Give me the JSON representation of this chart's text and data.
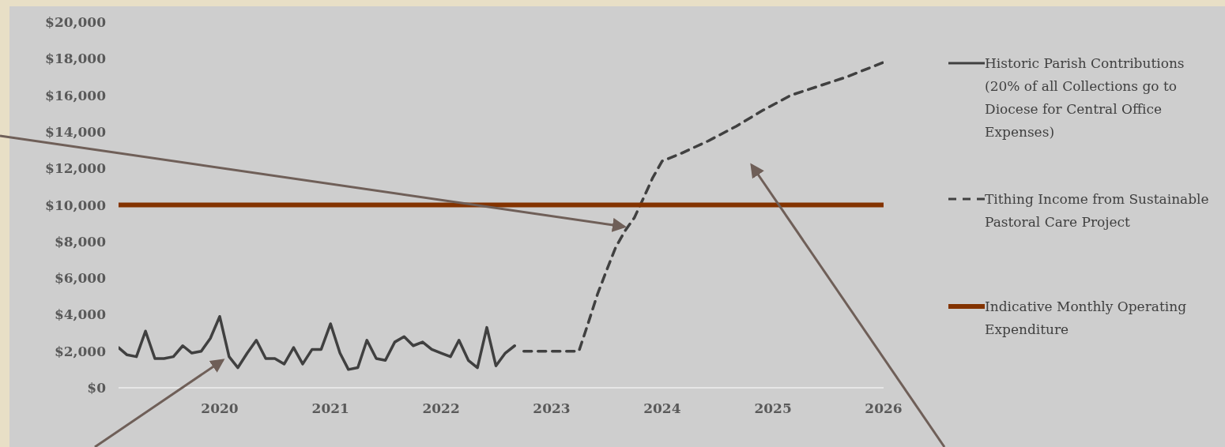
{
  "chart_data": {
    "type": "line",
    "xlim": [
      "2019-02",
      "2026-01"
    ],
    "xticks": [
      "2020",
      "2021",
      "2022",
      "2023",
      "2024",
      "2025",
      "2026"
    ],
    "ylim": [
      0,
      20000
    ],
    "yticks": [
      {
        "value": 0,
        "label": "$0"
      },
      {
        "value": 2000,
        "label": "$2,000"
      },
      {
        "value": 4000,
        "label": "$4,000"
      },
      {
        "value": 6000,
        "label": "$6,000"
      },
      {
        "value": 8000,
        "label": "$8,000"
      },
      {
        "value": 10000,
        "label": "$10,000"
      },
      {
        "value": 12000,
        "label": "$12,000"
      },
      {
        "value": 14000,
        "label": "$14,000"
      },
      {
        "value": 16000,
        "label": "$16,000"
      },
      {
        "value": 18000,
        "label": "$18,000"
      },
      {
        "value": 20000,
        "label": "$20,000"
      }
    ],
    "legend": "right",
    "marker": "none",
    "series": [
      {
        "name": "Historic Parish Contributions (20% of all Collections go to Diocese for Central Office Expenses)",
        "color": "#404040",
        "line_style": "solid",
        "x": [
          "2019-02",
          "2019-03",
          "2019-04",
          "2019-05",
          "2019-06",
          "2019-07",
          "2019-08",
          "2019-09",
          "2019-10",
          "2019-11",
          "2019-12",
          "2020-01",
          "2020-02",
          "2020-03",
          "2020-04",
          "2020-05",
          "2020-06",
          "2020-07",
          "2020-08",
          "2020-09",
          "2020-10",
          "2020-11",
          "2020-12",
          "2021-01",
          "2021-02",
          "2021-03",
          "2021-04",
          "2021-05",
          "2021-06",
          "2021-07",
          "2021-08",
          "2021-09",
          "2021-10",
          "2021-11",
          "2021-12",
          "2022-01",
          "2022-02",
          "2022-03",
          "2022-04",
          "2022-05",
          "2022-06",
          "2022-07",
          "2022-08",
          "2022-09"
        ],
        "values": [
          2200,
          1800,
          1700,
          3100,
          1600,
          1600,
          1700,
          2300,
          1900,
          2000,
          2700,
          3900,
          1700,
          1100,
          1900,
          2600,
          1600,
          1600,
          1300,
          2200,
          1300,
          2100,
          2100,
          3500,
          1900,
          1000,
          1100,
          2600,
          1600,
          1500,
          2500,
          2800,
          2300,
          2500,
          2100,
          1900,
          1700,
          2600,
          1500,
          1100,
          3300,
          1200,
          1900,
          2300
        ]
      },
      {
        "name": "Tithing Income from Sustainable Pastoral Care Project",
        "color": "#404040",
        "line_style": "dashed",
        "x": [
          "2022-10",
          "2023-04",
          "2023-05",
          "2023-06",
          "2023-07",
          "2023-08",
          "2023-09",
          "2023-10",
          "2023-11",
          "2023-12",
          "2024-01",
          "2024-03",
          "2024-06",
          "2024-09",
          "2024-12",
          "2025-03",
          "2025-06",
          "2025-09",
          "2026-01"
        ],
        "values": [
          2000,
          2000,
          3500,
          5100,
          6400,
          7700,
          8600,
          9300,
          10400,
          11500,
          12400,
          12800,
          13500,
          14300,
          15200,
          16000,
          16500,
          17000,
          17800
        ]
      },
      {
        "name": "Indicative Monthly Operating Expenditure",
        "color": "#833300",
        "line_style": "solid",
        "x": [
          "2019-02",
          "2026-01"
        ],
        "values": [
          10000,
          10000
        ]
      }
    ]
  }
}
